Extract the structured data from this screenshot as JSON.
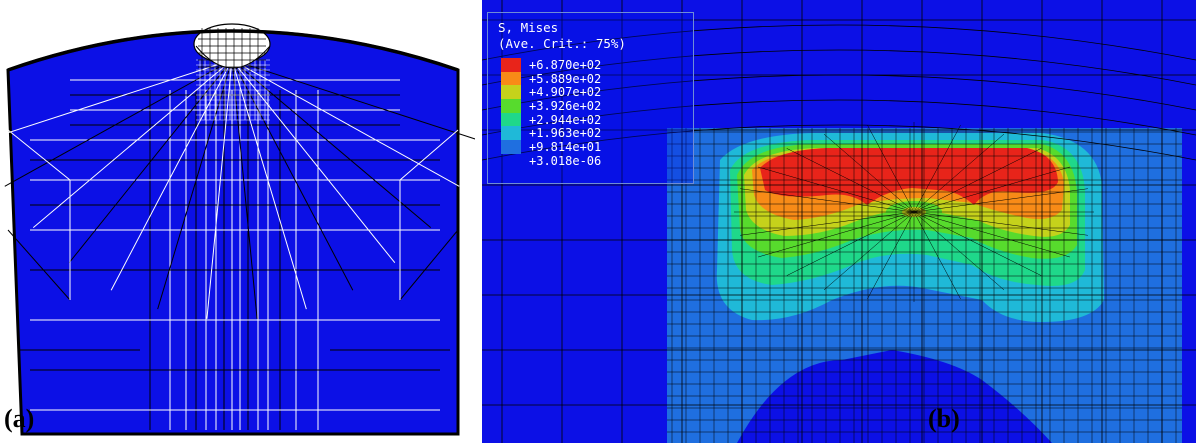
{
  "panels": {
    "a_label": "(a)",
    "b_label": "(b)"
  },
  "legend": {
    "title_line1": "S, Mises",
    "title_line2": "(Ave. Crit.: 75%)",
    "entries": [
      {
        "value": "+6.870e+02",
        "color": "#e8241a"
      },
      {
        "value": "+5.889e+02",
        "color": "#f88b17"
      },
      {
        "value": "+4.907e+02",
        "color": "#c5d21b"
      },
      {
        "value": "+3.926e+02",
        "color": "#57db2d"
      },
      {
        "value": "+2.944e+02",
        "color": "#1fd88a"
      },
      {
        "value": "+1.963e+02",
        "color": "#1fb9d8"
      },
      {
        "value": "+9.814e+01",
        "color": "#1f6fe0"
      },
      {
        "value": "+3.018e-06",
        "color": ""
      }
    ]
  },
  "colors": {
    "background_blue": "#0c10e6",
    "mesh_line_dark": "#000000",
    "mesh_line_light": "#ffffff",
    "contour_red": "#e8241a",
    "contour_orange": "#f88b17",
    "contour_yellow": "#c5d21b",
    "contour_green": "#57db2d",
    "contour_teal": "#1fd88a",
    "contour_cyan": "#1fb9d8",
    "contour_lightblue": "#1f6fe0"
  }
}
